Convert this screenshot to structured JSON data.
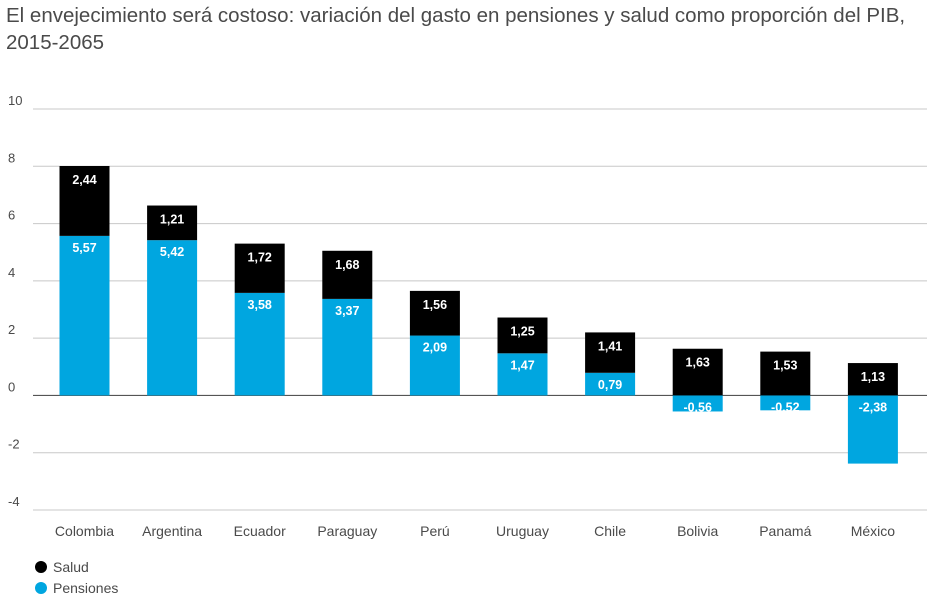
{
  "chart_data": {
    "type": "bar",
    "stacked": true,
    "title": "El envejecimiento será costoso: variación del gasto en pensiones y salud como proporción del PIB, 2015-2065",
    "categories": [
      "Colombia",
      "Argentina",
      "Ecuador",
      "Paraguay",
      "Perú",
      "Uruguay",
      "Chile",
      "Bolivia",
      "Panamá",
      "México"
    ],
    "series": [
      {
        "name": "Pensiones",
        "color": "#00a6e0",
        "values": [
          5.57,
          5.42,
          3.58,
          3.37,
          2.09,
          1.47,
          0.79,
          -0.56,
          -0.52,
          -2.38
        ],
        "labels": [
          "5,57",
          "5,42",
          "3,58",
          "3,37",
          "2,09",
          "1,47",
          "0,79",
          "-0,56",
          "-0,52",
          "-2,38"
        ]
      },
      {
        "name": "Salud",
        "color": "#000000",
        "values": [
          2.44,
          1.21,
          1.72,
          1.68,
          1.56,
          1.25,
          1.41,
          1.63,
          1.53,
          1.13
        ],
        "labels": [
          "2,44",
          "1,21",
          "1,72",
          "1,68",
          "1,56",
          "1,25",
          "1,41",
          "1,63",
          "1,53",
          "1,13"
        ]
      }
    ],
    "yticks": [
      "10",
      "8",
      "6",
      "4",
      "2",
      "0",
      "-2",
      "-4"
    ],
    "ylim": [
      -4,
      10
    ],
    "grid": true,
    "legend_position": "bottom-left"
  }
}
